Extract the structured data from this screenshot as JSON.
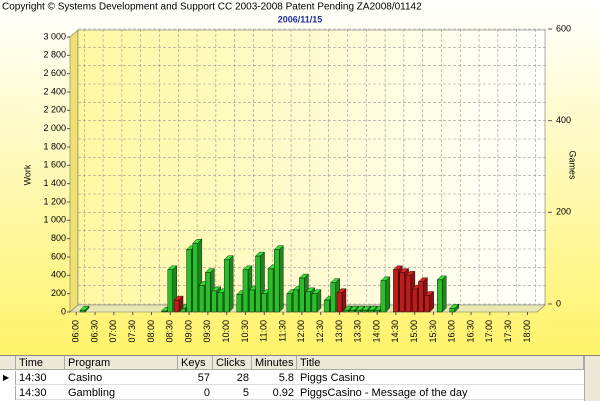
{
  "header": "Copyright © Systems Development and Support CC 2003-2008 Patent Pending ZA2008/01142",
  "chart_data": {
    "type": "bar",
    "title": "2006/11/15",
    "y_label": "Work",
    "y2_label": "Games",
    "grid": true,
    "xlim": [
      350,
      1100
    ],
    "xticks": [
      {
        "value": 360,
        "label": "06:00"
      },
      {
        "value": 390,
        "label": "06:30"
      },
      {
        "value": 420,
        "label": "07:00"
      },
      {
        "value": 450,
        "label": "07:30"
      },
      {
        "value": 480,
        "label": "08:00"
      },
      {
        "value": 510,
        "label": "08:30"
      },
      {
        "value": 540,
        "label": "09:00"
      },
      {
        "value": 570,
        "label": "09:30"
      },
      {
        "value": 600,
        "label": "10:00"
      },
      {
        "value": 630,
        "label": "10:30"
      },
      {
        "value": 660,
        "label": "11:00"
      },
      {
        "value": 690,
        "label": "11:30"
      },
      {
        "value": 720,
        "label": "12:00"
      },
      {
        "value": 750,
        "label": "12:30"
      },
      {
        "value": 780,
        "label": "13:00"
      },
      {
        "value": 810,
        "label": "13:30"
      },
      {
        "value": 840,
        "label": "14:00"
      },
      {
        "value": 870,
        "label": "14:30"
      },
      {
        "value": 900,
        "label": "15:00"
      },
      {
        "value": 930,
        "label": "15:30"
      },
      {
        "value": 960,
        "label": "16:00"
      },
      {
        "value": 990,
        "label": "16:30"
      },
      {
        "value": 1020,
        "label": "17:00"
      },
      {
        "value": 1050,
        "label": "17:30"
      },
      {
        "value": 1080,
        "label": "18:00"
      }
    ],
    "ylim": [
      0,
      3000
    ],
    "yticks": [
      0,
      200,
      400,
      600,
      800,
      {
        "value": 1000,
        "label": "1 000"
      },
      {
        "value": 1200,
        "label": "1 200"
      },
      {
        "value": 1400,
        "label": "1 400"
      },
      {
        "value": 1600,
        "label": "1 600"
      },
      {
        "value": 1800,
        "label": "1 800"
      },
      {
        "value": 2000,
        "label": "2 000"
      },
      {
        "value": 2200,
        "label": "2 200"
      },
      {
        "value": 2400,
        "label": "2 400"
      },
      {
        "value": 2600,
        "label": "2 600"
      },
      {
        "value": 2800,
        "label": "2 800"
      },
      {
        "value": 3000,
        "label": "3 000"
      }
    ],
    "y2lim": [
      0,
      600
    ],
    "y2ticks": [
      0,
      200,
      400,
      600
    ],
    "series": [
      {
        "color": "#33e033",
        "x": [
          370,
          500,
          510,
          530,
          540,
          550,
          560,
          570,
          580,
          590,
          600,
          620,
          630,
          640,
          650,
          660,
          670,
          680,
          700,
          710,
          720,
          730,
          740,
          760,
          770,
          790,
          800,
          810,
          820,
          830,
          840,
          850,
          940,
          960
        ],
        "values": [
          20,
          10,
          460,
          40,
          680,
          750,
          290,
          430,
          230,
          210,
          570,
          190,
          460,
          240,
          610,
          200,
          470,
          680,
          200,
          240,
          370,
          220,
          200,
          130,
          320,
          20,
          20,
          20,
          20,
          20,
          20,
          340,
          350,
          40
        ]
      },
      {
        "color": "#e02020",
        "x": [
          520,
          780,
          870,
          880,
          890,
          900,
          910,
          920
        ],
        "values": [
          130,
          210,
          460,
          430,
          400,
          250,
          330,
          180
        ]
      }
    ]
  },
  "table": {
    "columns": [
      "Time",
      "Program",
      "Keys",
      "Clicks",
      "Minutes",
      "Title"
    ],
    "rows": [
      [
        "14:30",
        "Casino",
        57,
        28,
        5.8,
        "Piggs Casino"
      ],
      [
        "14:30",
        "Gambling",
        0,
        5,
        0.92,
        "PiggsCasino - Message of the day"
      ]
    ]
  }
}
